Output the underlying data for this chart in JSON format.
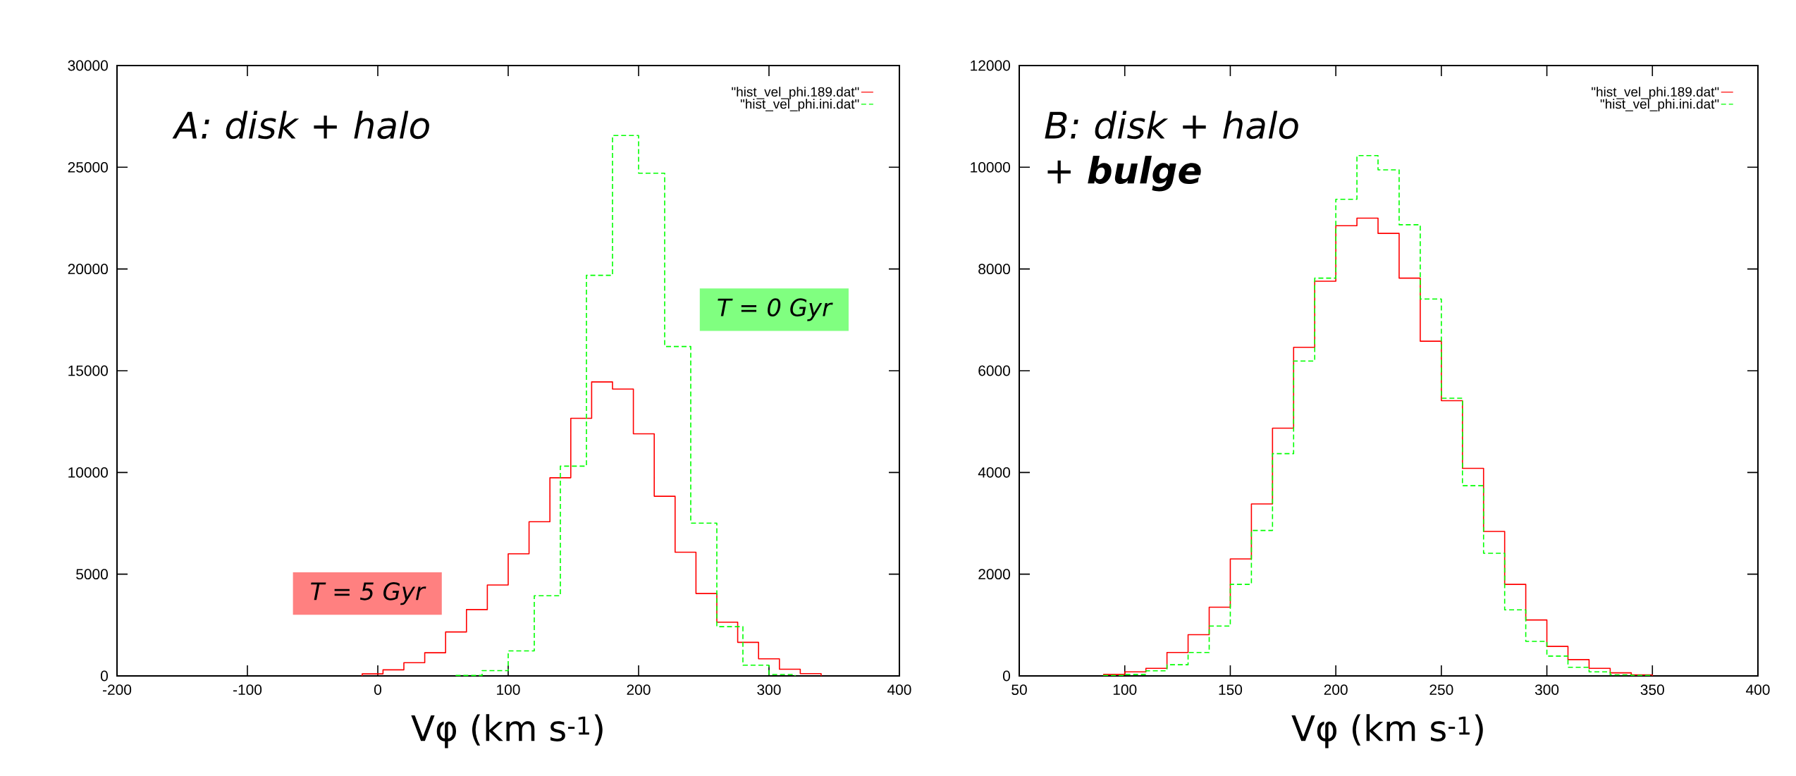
{
  "chart_data": [
    {
      "type": "step",
      "title": "A: disk + halo",
      "xlabel": "Vφ (km s$^{-1}$)",
      "xlim": [
        -200,
        400
      ],
      "xticks": [
        -200,
        -100,
        0,
        100,
        200,
        300,
        400
      ],
      "ylim": [
        0,
        30000
      ],
      "yticks": [
        0,
        5000,
        10000,
        15000,
        20000,
        25000,
        30000
      ],
      "legend": "top right",
      "annotations": [
        "T = 5 Gyr",
        "T = 0 Gyr"
      ],
      "series": [
        {
          "name": "\"hist_vel_phi.189.dat\"",
          "color": "#ff0000",
          "line_style": "solid",
          "x": [
            -12,
            4,
            20,
            36,
            52,
            68,
            84,
            100,
            116,
            132,
            148,
            164,
            180,
            196,
            212,
            228,
            244,
            260,
            276,
            292,
            308,
            324,
            340
          ],
          "values": [
            100,
            300,
            650,
            1140,
            2160,
            3260,
            4470,
            6000,
            7580,
            9740,
            12660,
            14450,
            14100,
            11900,
            8830,
            6080,
            4050,
            2640,
            1650,
            840,
            330,
            110,
            0
          ]
        },
        {
          "name": "\"hist_vel_phi.ini.dat\"",
          "color": "#00ff00",
          "line_style": "dashed",
          "x": [
            60,
            80,
            100,
            120,
            140,
            160,
            180,
            200,
            220,
            240,
            260,
            280,
            300,
            320
          ],
          "values": [
            20,
            260,
            1230,
            3940,
            10310,
            19690,
            26560,
            24710,
            16190,
            7510,
            2420,
            530,
            70,
            0
          ]
        }
      ]
    },
    {
      "type": "step",
      "title": "B: disk + halo + **bulge**",
      "xlabel": "Vφ (km s$^{-1}$)",
      "xlim": [
        50,
        400
      ],
      "xticks": [
        50,
        100,
        150,
        200,
        250,
        300,
        350,
        400
      ],
      "ylim": [
        0,
        12000
      ],
      "yticks": [
        0,
        2000,
        4000,
        6000,
        8000,
        10000,
        12000
      ],
      "legend": "top right",
      "series": [
        {
          "name": "\"hist_vel_phi.189.dat\"",
          "color": "#ff0000",
          "line_style": "solid",
          "x": [
            90,
            100,
            110,
            120,
            130,
            140,
            150,
            160,
            170,
            180,
            190,
            200,
            210,
            220,
            230,
            240,
            250,
            260,
            270,
            280,
            290,
            300,
            310,
            320,
            330,
            340,
            350
          ],
          "values": [
            30,
            80,
            150,
            460,
            810,
            1350,
            2300,
            3380,
            4870,
            6460,
            7760,
            8850,
            9000,
            8700,
            7820,
            6580,
            5410,
            4080,
            2840,
            1800,
            1100,
            580,
            320,
            150,
            60,
            20,
            0
          ]
        },
        {
          "name": "\"hist_vel_phi.ini.dat\"",
          "color": "#00ff00",
          "line_style": "dashed",
          "x": [
            90,
            100,
            110,
            120,
            130,
            140,
            150,
            160,
            170,
            180,
            190,
            200,
            210,
            220,
            230,
            240,
            250,
            260,
            270,
            280,
            290,
            300,
            310,
            320,
            330,
            340,
            350
          ],
          "values": [
            10,
            30,
            100,
            220,
            460,
            980,
            1800,
            2860,
            4370,
            6190,
            7820,
            9370,
            10230,
            9950,
            8870,
            7410,
            5460,
            3740,
            2410,
            1300,
            680,
            390,
            170,
            80,
            20,
            10,
            0
          ]
        }
      ]
    }
  ]
}
